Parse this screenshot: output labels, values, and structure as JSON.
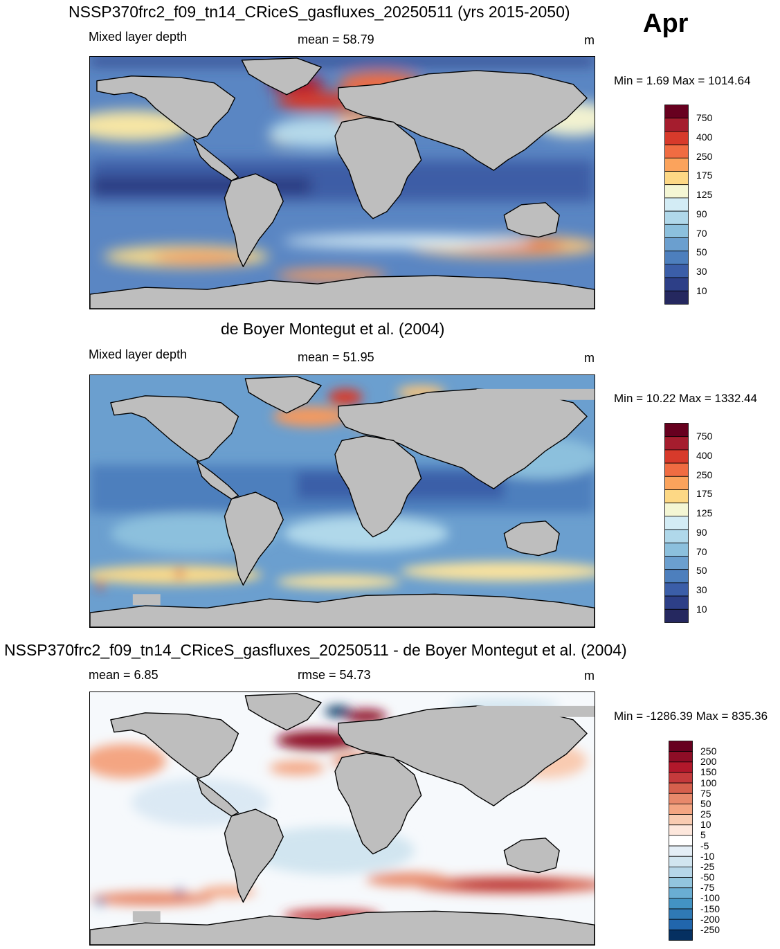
{
  "month": "Apr",
  "panels": [
    {
      "title": "NSSP370frc2_f09_tn14_CRiceS_gasfluxes_20250511 (yrs 2015-2050)",
      "left_label": "Mixed layer depth",
      "center_label": "mean =  58.79",
      "unit": "m",
      "minmax": "Min =   1.69 Max = 1014.64",
      "colorbar": {
        "labels": [
          "750",
          "400",
          "250",
          "175",
          "125",
          "90",
          "70",
          "50",
          "30",
          "10"
        ],
        "colors": [
          "#67001f",
          "#a51d2e",
          "#d73a2b",
          "#f06c42",
          "#fba35c",
          "#fdd885",
          "#f4f6d4",
          "#d3ecf5",
          "#b0d8ea",
          "#8cc0dd",
          "#6b9fcf",
          "#4d7fbd",
          "#3b5ea8",
          "#2d3f87",
          "#25285f"
        ]
      }
    },
    {
      "title": "de Boyer Montegut et al. (2004)",
      "left_label": "Mixed layer depth",
      "center_label": "mean =  51.95",
      "unit": "m",
      "minmax": "Min =  10.22 Max = 1332.44",
      "colorbar": {
        "labels": [
          "750",
          "400",
          "250",
          "175",
          "125",
          "90",
          "70",
          "50",
          "30",
          "10"
        ],
        "colors": [
          "#67001f",
          "#a51d2e",
          "#d73a2b",
          "#f06c42",
          "#fba35c",
          "#fdd885",
          "#f4f6d4",
          "#d3ecf5",
          "#b0d8ea",
          "#8cc0dd",
          "#6b9fcf",
          "#4d7fbd",
          "#3b5ea8",
          "#2d3f87",
          "#25285f"
        ]
      }
    },
    {
      "title": "NSSP370frc2_f09_tn14_CRiceS_gasfluxes_20250511 - de Boyer Montegut et al. (2004)",
      "left_label": "mean =   6.85",
      "center_label": "rmse =  54.73",
      "unit": "m",
      "minmax": "Min = -1286.39 Max = 835.36",
      "colorbar": {
        "labels": [
          "250",
          "200",
          "150",
          "100",
          "75",
          "50",
          "25",
          "10",
          "5",
          "-5",
          "-10",
          "-25",
          "-50",
          "-75",
          "-100",
          "-150",
          "-200",
          "-250"
        ],
        "colors": [
          "#67001f",
          "#8e0d26",
          "#b2182b",
          "#c53a3c",
          "#d6604d",
          "#e8896b",
          "#f4a582",
          "#f9cbb1",
          "#fde7dc",
          "#ffffff",
          "#e4eef6",
          "#d1e5f0",
          "#b6d6e8",
          "#92c5de",
          "#6aaed3",
          "#4393c3",
          "#2f79b5",
          "#2166ac",
          "#053061"
        ]
      }
    }
  ]
}
